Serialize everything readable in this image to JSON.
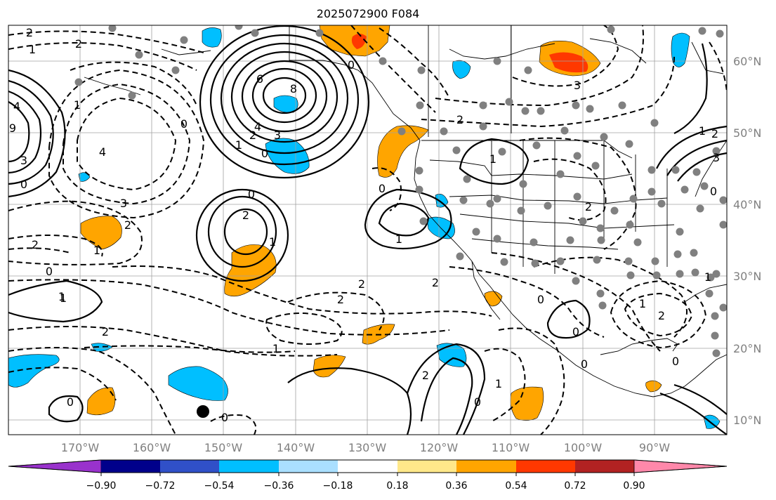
{
  "title": "2025072900 F084",
  "latitude_labels": [
    "60°N",
    "50°N",
    "40°N",
    "30°N",
    "20°N",
    "10°N"
  ],
  "longitude_labels": [
    "170°W",
    "160°W",
    "150°W",
    "140°W",
    "130°W",
    "120°W",
    "110°W",
    "100°W",
    "90°W"
  ],
  "colorbar": {
    "ticks": [
      "−0.90",
      "−0.72",
      "−0.54",
      "−0.36",
      "−0.18",
      "0.18",
      "0.36",
      "0.54",
      "0.72",
      "0.90"
    ],
    "colors": [
      "#9932cc",
      "#00008b",
      "#3050c8",
      "#00bfff",
      "#aadfff",
      "#ffffff",
      "#ffe88a",
      "#ffa500",
      "#ff3800",
      "#b22222",
      "#ff88aa"
    ]
  },
  "contour_labels": [
    "2",
    "1",
    "2",
    "4",
    "9",
    "3",
    "0",
    "4",
    "3",
    "2",
    "1",
    "2",
    "1",
    "0",
    "6",
    "8",
    "4",
    "3",
    "2",
    "1",
    "0",
    "0",
    "2",
    "1",
    "0",
    "1",
    "2",
    "2",
    "1",
    "2",
    "0",
    "1",
    "0",
    "0",
    "3",
    "2",
    "1",
    "0",
    "2",
    "2",
    "1",
    "0",
    "1",
    "2",
    "1",
    "0",
    "0",
    "0",
    "1",
    "2",
    "0",
    "3",
    "1",
    "2",
    "0"
  ],
  "colors": {
    "shade_orange": "#ffa500",
    "shade_red": "#ff3800",
    "shade_blue": "#00bfff",
    "station_dot": "#808080",
    "marker": "#000000"
  }
}
